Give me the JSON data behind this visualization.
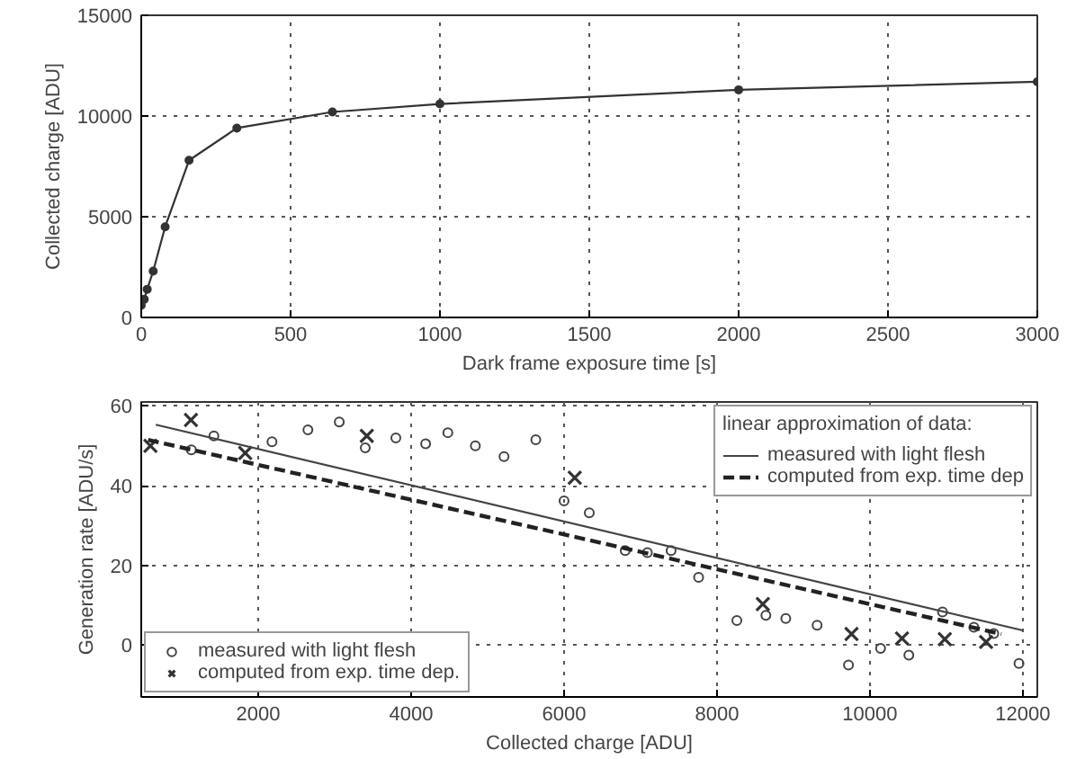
{
  "chart_data": [
    {
      "type": "line",
      "xlabel": "Dark frame exposure time [s]",
      "ylabel": "Collected charge [ADU]",
      "x": [
        0,
        10,
        20,
        40,
        80,
        160,
        320,
        640,
        1000,
        2000,
        3000
      ],
      "series": [
        {
          "color": "#333333",
          "values": [
            600,
            900,
            1400,
            2300,
            4500,
            7800,
            9400,
            10200,
            10600,
            11300,
            11700
          ]
        }
      ],
      "xlim": [
        0,
        3000
      ],
      "ylim": [
        0,
        15000
      ],
      "xticks": [
        0,
        500,
        1000,
        1500,
        2000,
        2500,
        3000
      ],
      "yticks": [
        0,
        5000,
        10000,
        15000
      ],
      "grid": true,
      "marker": "circle",
      "line_style": "solid"
    },
    {
      "type": "scatter",
      "xlabel": "Collected charge [ADU]",
      "ylabel": "Generation rate [ADU/s]",
      "legend_title": "linear approximation of data:",
      "series": [
        {
          "name": "measured with light flesh",
          "color": "#444444",
          "marker": "circle",
          "x": [
            1125,
            1420,
            2180,
            2650,
            3060,
            3400,
            3800,
            4190,
            4480,
            4840,
            5215,
            5630,
            6000,
            6330,
            6800,
            7090,
            7400,
            7760,
            8260,
            8640,
            8900,
            9310,
            9720,
            10140,
            10510,
            10950,
            11360,
            11620,
            11950
          ],
          "values": [
            49,
            52.5,
            51,
            54,
            56,
            49.5,
            52,
            50.5,
            53.3,
            50,
            47.3,
            51.5,
            36.2,
            33.2,
            23.7,
            23.2,
            23.7,
            17,
            6.2,
            7.5,
            6.7,
            5,
            -5,
            -0.8,
            -2.5,
            8.3,
            4.5,
            2.9,
            -4.6
          ]
        },
        {
          "name": "computed from exp. time dep.",
          "color": "#333333",
          "marker": "cross",
          "x": [
            590,
            1120,
            1830,
            3420,
            6140,
            8600,
            9760,
            10420,
            10980,
            11520
          ],
          "values": [
            50,
            56.5,
            48.2,
            52.5,
            42,
            10.3,
            2.8,
            1.7,
            1.5,
            0.8
          ]
        },
        {
          "name": "measured with light flesh",
          "type": "line",
          "line_style": "solid",
          "color": "#444444",
          "x": [
            660,
            12000
          ],
          "values": [
            55.3,
            3.7
          ]
        },
        {
          "name": "computed from exp. time dep",
          "type": "line",
          "line_style": "dashed",
          "color": "#222222",
          "x": [
            560,
            11720
          ],
          "values": [
            51.5,
            2.8
          ]
        }
      ],
      "xlim": [
        470,
        12190
      ],
      "ylim": [
        -13,
        61
      ],
      "xticks": [
        2000,
        4000,
        6000,
        8000,
        10000,
        12000
      ],
      "yticks": [
        0,
        20,
        40,
        60
      ],
      "grid": true,
      "legend": "bottom left"
    }
  ]
}
